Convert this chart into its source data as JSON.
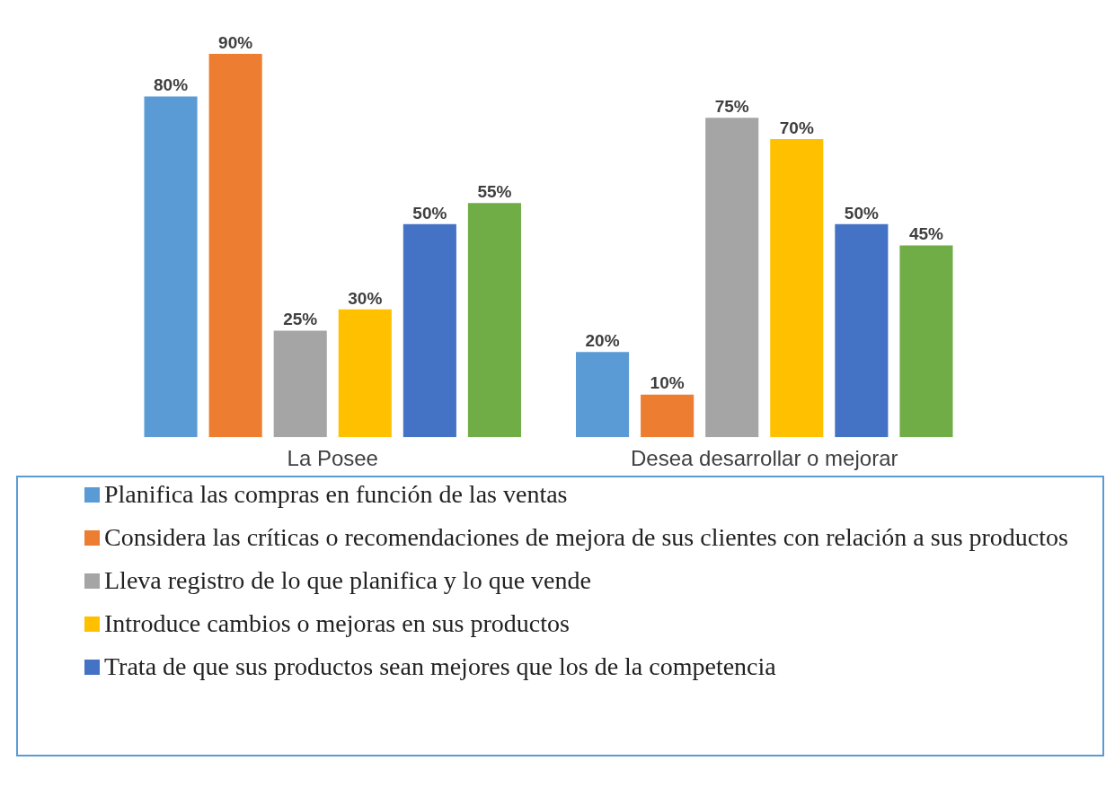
{
  "chart_data": {
    "type": "bar",
    "categories": [
      "La Posee",
      "Desea desarrollar o mejorar"
    ],
    "series": [
      {
        "name": "Planifica las compras en función de las ventas",
        "color": "#5b9bd5",
        "values": [
          80,
          20
        ],
        "value_labels": [
          "80%",
          "20%"
        ]
      },
      {
        "name": "Considera las críticas o recomendaciones de mejora de sus clientes con relación a sus productos",
        "color": "#ed7d31",
        "values": [
          90,
          10
        ],
        "value_labels": [
          "90%",
          "10%"
        ]
      },
      {
        "name": "Lleva registro de lo que planifica y lo que vende",
        "color": "#a5a5a5",
        "values": [
          25,
          75
        ],
        "value_labels": [
          "25%",
          "75%"
        ]
      },
      {
        "name": "Introduce cambios o mejoras en sus productos",
        "color": "#ffc000",
        "values": [
          30,
          70
        ],
        "value_labels": [
          "30%",
          "70%"
        ]
      },
      {
        "name": "Trata de que sus productos sean mejores que los de la competencia",
        "color": "#4472c4",
        "values": [
          50,
          50
        ],
        "value_labels": [
          "50%",
          "50%"
        ]
      },
      {
        "color": "#70ad47",
        "values": [
          55,
          45
        ],
        "value_labels": [
          "55%",
          "45%"
        ]
      }
    ],
    "grid": false,
    "legend": "bottom"
  }
}
